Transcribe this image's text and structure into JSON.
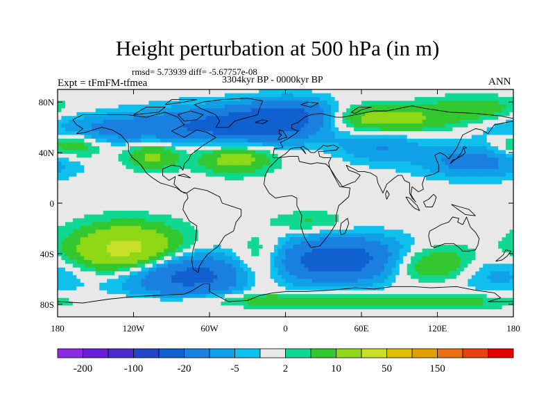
{
  "chart_data": {
    "type": "heatmap",
    "title": "Height perturbation at 500 hPa (in m)",
    "stats": "rmsd= 5.73939 diff= -5.67757e-08",
    "period": "3304kyr BP - 0000kyr BP",
    "experiment": "Expt = tFmFM-tfmea",
    "season": "ANN",
    "xlim": [
      -180,
      180
    ],
    "ylim": [
      -90,
      90
    ],
    "x_ticks": [
      {
        "value": -180,
        "label": "180"
      },
      {
        "value": -120,
        "label": "120W"
      },
      {
        "value": -60,
        "label": "60W"
      },
      {
        "value": 0,
        "label": "0"
      },
      {
        "value": 60,
        "label": "60E"
      },
      {
        "value": 120,
        "label": "120E"
      },
      {
        "value": 180,
        "label": "180"
      }
    ],
    "y_ticks": [
      {
        "value": 80,
        "label": "80N"
      },
      {
        "value": 40,
        "label": "40N"
      },
      {
        "value": 0,
        "label": "0"
      },
      {
        "value": -40,
        "label": "40S"
      },
      {
        "value": -80,
        "label": "80S"
      }
    ],
    "colorbar": {
      "colors": [
        "#8a2be2",
        "#6a1fd8",
        "#4b2ad0",
        "#2545c8",
        "#1060d0",
        "#1a80e0",
        "#10a0e8",
        "#10c0ec",
        "#e8e8e8",
        "#10d890",
        "#34c830",
        "#8fd818",
        "#c8e028",
        "#e0c000",
        "#e0a000",
        "#e87010",
        "#e84010",
        "#e00000"
      ],
      "labels": [
        {
          "text": "-200",
          "boundary": 1
        },
        {
          "text": "-100",
          "boundary": 3
        },
        {
          "text": "-20",
          "boundary": 5
        },
        {
          "text": "-5",
          "boundary": 7
        },
        {
          "text": "2",
          "boundary": 9
        },
        {
          "text": "10",
          "boundary": 11
        },
        {
          "text": "50",
          "boundary": 13
        },
        {
          "text": "150",
          "boundary": 15
        }
      ]
    },
    "field_anomalies": [
      {
        "lon": -35,
        "lat": 62,
        "value": -26,
        "sx": 48,
        "sy": 10
      },
      {
        "lon": 5,
        "lat": 70,
        "value": -18,
        "sx": 25,
        "sy": 9
      },
      {
        "lon": -140,
        "lat": 58,
        "value": -12,
        "sx": 40,
        "sy": 8
      },
      {
        "lon": 70,
        "lat": 66,
        "value": 16,
        "sx": 40,
        "sy": 8
      },
      {
        "lon": 150,
        "lat": 75,
        "value": 8,
        "sx": 25,
        "sy": 7
      },
      {
        "lon": -170,
        "lat": 46,
        "value": 12,
        "sx": 18,
        "sy": 8
      },
      {
        "lon": -105,
        "lat": 38,
        "value": 12,
        "sx": 15,
        "sy": 8
      },
      {
        "lon": -40,
        "lat": 35,
        "value": 14,
        "sx": 20,
        "sy": 8
      },
      {
        "lon": 75,
        "lat": 45,
        "value": -10,
        "sx": 22,
        "sy": 9
      },
      {
        "lon": 150,
        "lat": 33,
        "value": -14,
        "sx": 30,
        "sy": 9
      },
      {
        "lon": 20,
        "lat": -15,
        "value": 6,
        "sx": 20,
        "sy": 6
      },
      {
        "lon": -125,
        "lat": -38,
        "value": 26,
        "sx": 30,
        "sy": 14
      },
      {
        "lon": -80,
        "lat": -57,
        "value": -26,
        "sx": 38,
        "sy": 12
      },
      {
        "lon": -20,
        "lat": -48,
        "value": 14,
        "sx": 16,
        "sy": 14
      },
      {
        "lon": 45,
        "lat": -45,
        "value": -30,
        "sx": 40,
        "sy": 12
      },
      {
        "lon": 110,
        "lat": -48,
        "value": 16,
        "sx": 30,
        "sy": 10
      },
      {
        "lon": 165,
        "lat": -55,
        "value": -8,
        "sx": 25,
        "sy": 10
      },
      {
        "lon": 0,
        "lat": -77,
        "value": 8,
        "sx": 80,
        "sy": 4
      },
      {
        "lon": 130,
        "lat": -78,
        "value": 6,
        "sx": 40,
        "sy": 4
      }
    ]
  }
}
